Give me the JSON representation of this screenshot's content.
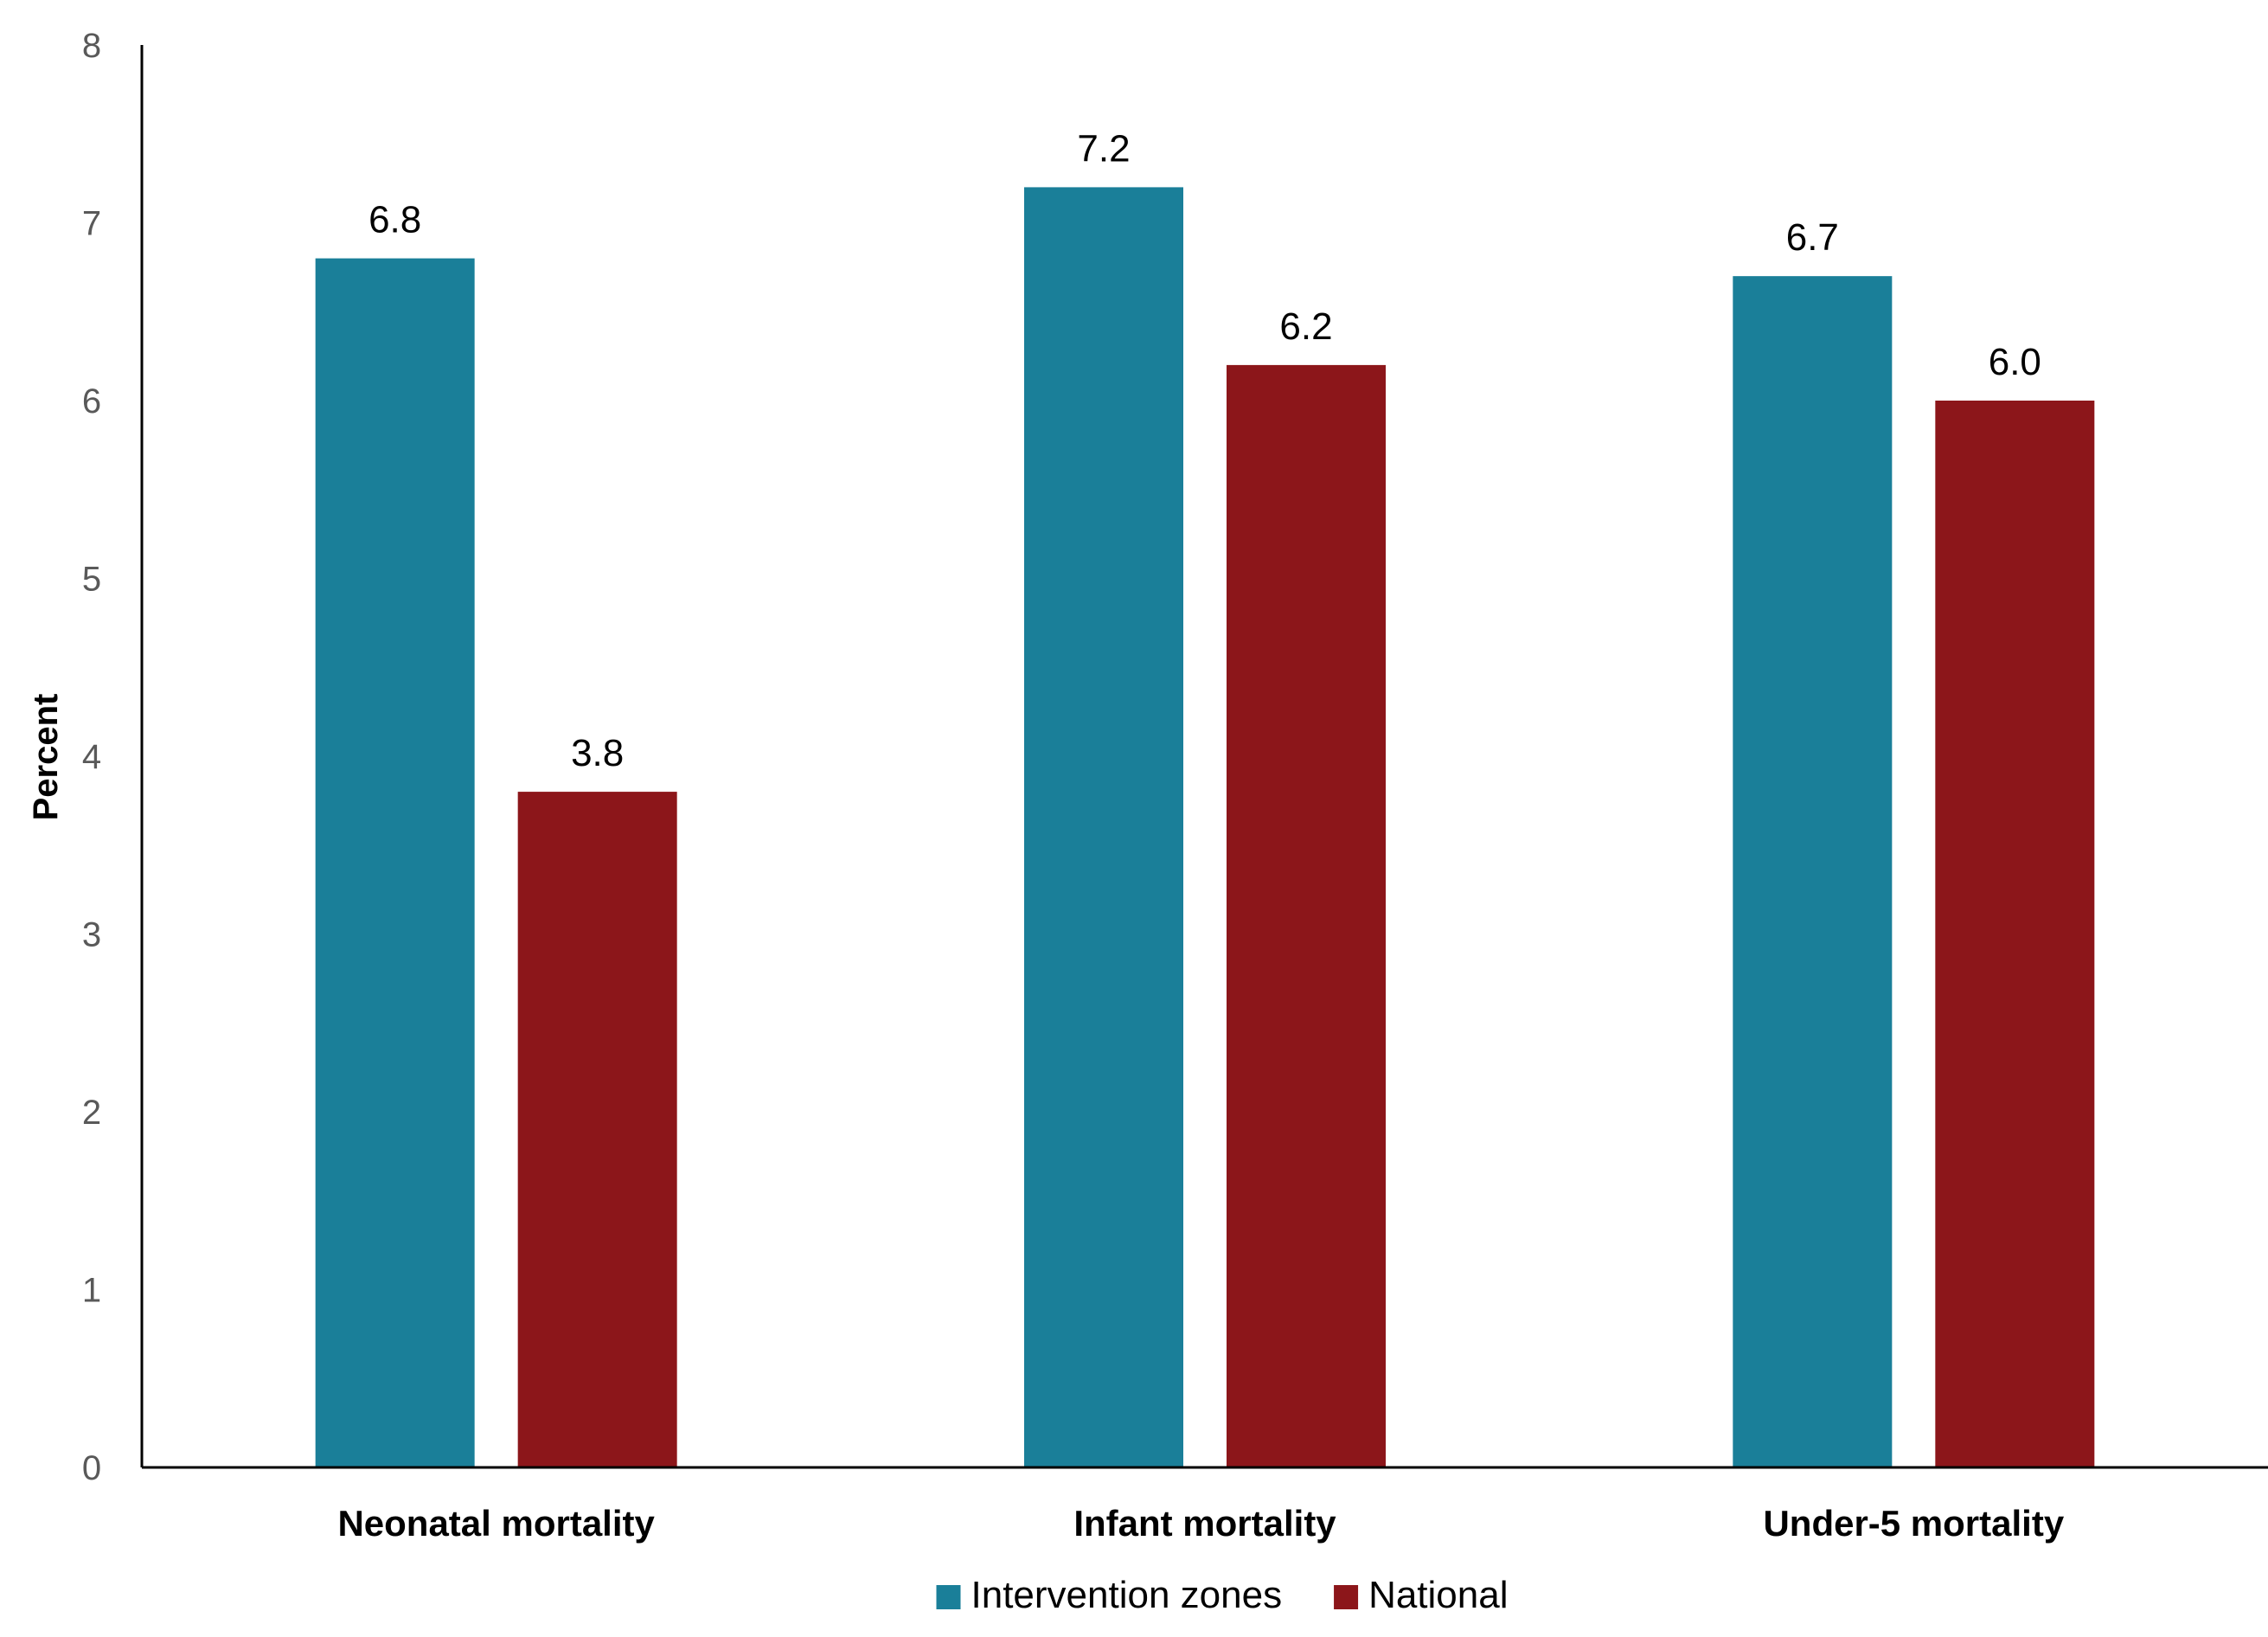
{
  "chart_data": {
    "type": "bar",
    "categories": [
      "Neonatal mortality",
      "Infant mortality",
      "Under-5 mortality"
    ],
    "series": [
      {
        "name": "Intervention zones",
        "values": [
          6.8,
          7.2,
          6.7
        ],
        "labels": [
          "6.8",
          "7.2",
          "6.7"
        ],
        "color": "#1A7F99"
      },
      {
        "name": "National",
        "values": [
          3.8,
          6.2,
          6.0
        ],
        "labels": [
          "3.8",
          "6.2",
          "6.0"
        ],
        "color": "#8C161A"
      }
    ],
    "title": "",
    "xlabel": "",
    "ylabel": "Percent",
    "ylim": [
      0,
      8
    ],
    "yticks": [
      "0",
      "1",
      "2",
      "3",
      "4",
      "5",
      "6",
      "7",
      "8"
    ],
    "grid": false,
    "legend_position": "bottom"
  }
}
